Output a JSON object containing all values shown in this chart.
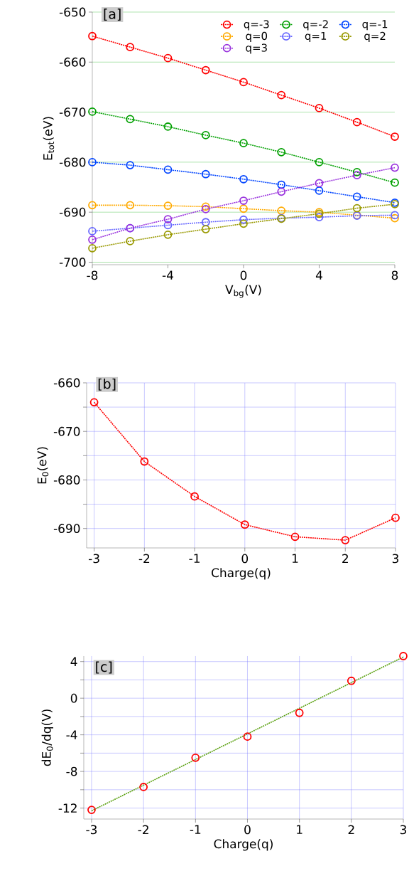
{
  "chart_data": [
    {
      "type": "line",
      "xlabel": "V$_{bg}$(V)",
      "ylabel": "E$_{tot}$(eV)",
      "annotations": [
        "[a]"
      ],
      "x": [
        -8,
        -6,
        -4,
        -2,
        0,
        2,
        4,
        6,
        8
      ],
      "xlim": [
        -8,
        8
      ],
      "ylim": [
        -700.5,
        -650
      ],
      "xticks": [
        -8,
        -4,
        0,
        4,
        8
      ],
      "yticks": [
        -700,
        -690,
        -680,
        -670,
        -660,
        -650
      ],
      "grid": "y",
      "legend": "top right",
      "marker": "circle",
      "line_style": "dotted",
      "series": [
        {
          "name": "q=-3",
          "color": "#ff0000",
          "values": [
            -654.8,
            -657.0,
            -659.2,
            -661.6,
            -664.0,
            -666.6,
            -669.2,
            -672.0,
            -674.9
          ]
        },
        {
          "name": "q=-2",
          "color": "#00a000",
          "values": [
            -669.9,
            -671.4,
            -672.9,
            -674.6,
            -676.2,
            -678.0,
            -680.0,
            -682.0,
            -684.1
          ]
        },
        {
          "name": "q=-1",
          "color": "#0044ff",
          "values": [
            -680.0,
            -680.6,
            -681.5,
            -682.4,
            -683.4,
            -684.5,
            -685.7,
            -686.9,
            -688.1
          ]
        },
        {
          "name": "q=0",
          "color": "#ffaa00",
          "values": [
            -688.6,
            -688.6,
            -688.7,
            -688.9,
            -689.3,
            -689.7,
            -690.0,
            -690.6,
            -691.2
          ]
        },
        {
          "name": "q=1",
          "color": "#6666ff",
          "values": [
            -693.8,
            -693.2,
            -692.6,
            -692.0,
            -691.5,
            -691.2,
            -691.0,
            -690.7,
            -690.6
          ]
        },
        {
          "name": "q=2",
          "color": "#999900",
          "values": [
            -697.2,
            -695.8,
            -694.5,
            -693.4,
            -692.3,
            -691.3,
            -690.3,
            -689.2,
            -688.4
          ]
        },
        {
          "name": "q=3",
          "color": "#9933dd",
          "values": [
            -695.5,
            -693.2,
            -691.4,
            -689.4,
            -687.7,
            -685.9,
            -684.2,
            -682.6,
            -681.1
          ]
        }
      ]
    },
    {
      "type": "line",
      "xlabel": "Charge(q)",
      "ylabel": "E$_{0}$(eV)",
      "annotations": [
        "[b]"
      ],
      "x": [
        -3,
        -2,
        -1,
        0,
        1,
        2,
        3
      ],
      "xlim": [
        -3.15,
        3
      ],
      "ylim": [
        -694,
        -660
      ],
      "xticks": [
        -3,
        -2,
        -1,
        0,
        1,
        2,
        3
      ],
      "yticks": [
        -690,
        {
          "value": -685,
          "label": null
        },
        -680,
        {
          "value": -675,
          "label": null
        },
        -670,
        {
          "value": -665,
          "label": null
        },
        -660
      ],
      "grid": true,
      "marker": "circle",
      "line_style": "dotted",
      "series": [
        {
          "color": "#ff0000",
          "values": [
            -664.0,
            -676.2,
            -683.4,
            -689.2,
            -691.7,
            -692.4,
            -687.8
          ]
        }
      ]
    },
    {
      "type": "scatter",
      "xlabel": "Charge(q)",
      "ylabel": "dE$_{0}$/dq(V)",
      "annotations": [
        "[c]"
      ],
      "x": [
        -3,
        -2,
        -1,
        0,
        1,
        2,
        3
      ],
      "xlim": [
        -3.15,
        3
      ],
      "ylim": [
        -13.2,
        4.6
      ],
      "xticks": [
        -3,
        -2,
        -1,
        0,
        1,
        2,
        3
      ],
      "yticks": [
        -12,
        {
          "value": -10,
          "label": null
        },
        -8,
        {
          "value": -6,
          "label": null
        },
        -4,
        {
          "value": -2,
          "label": null
        },
        0,
        {
          "value": 2,
          "label": null
        },
        4
      ],
      "grid": true,
      "marker": "circle",
      "series": [
        {
          "color": "#ff0000",
          "values": [
            -12.2,
            -9.7,
            -6.5,
            -4.2,
            -1.6,
            1.9,
            4.6
          ]
        },
        {
          "type": "line",
          "color": "#5aa010",
          "x": [
            -3,
            3
          ],
          "values": [
            -12.3,
            4.5
          ],
          "marker": "none",
          "line_style": "dotted"
        }
      ]
    }
  ]
}
